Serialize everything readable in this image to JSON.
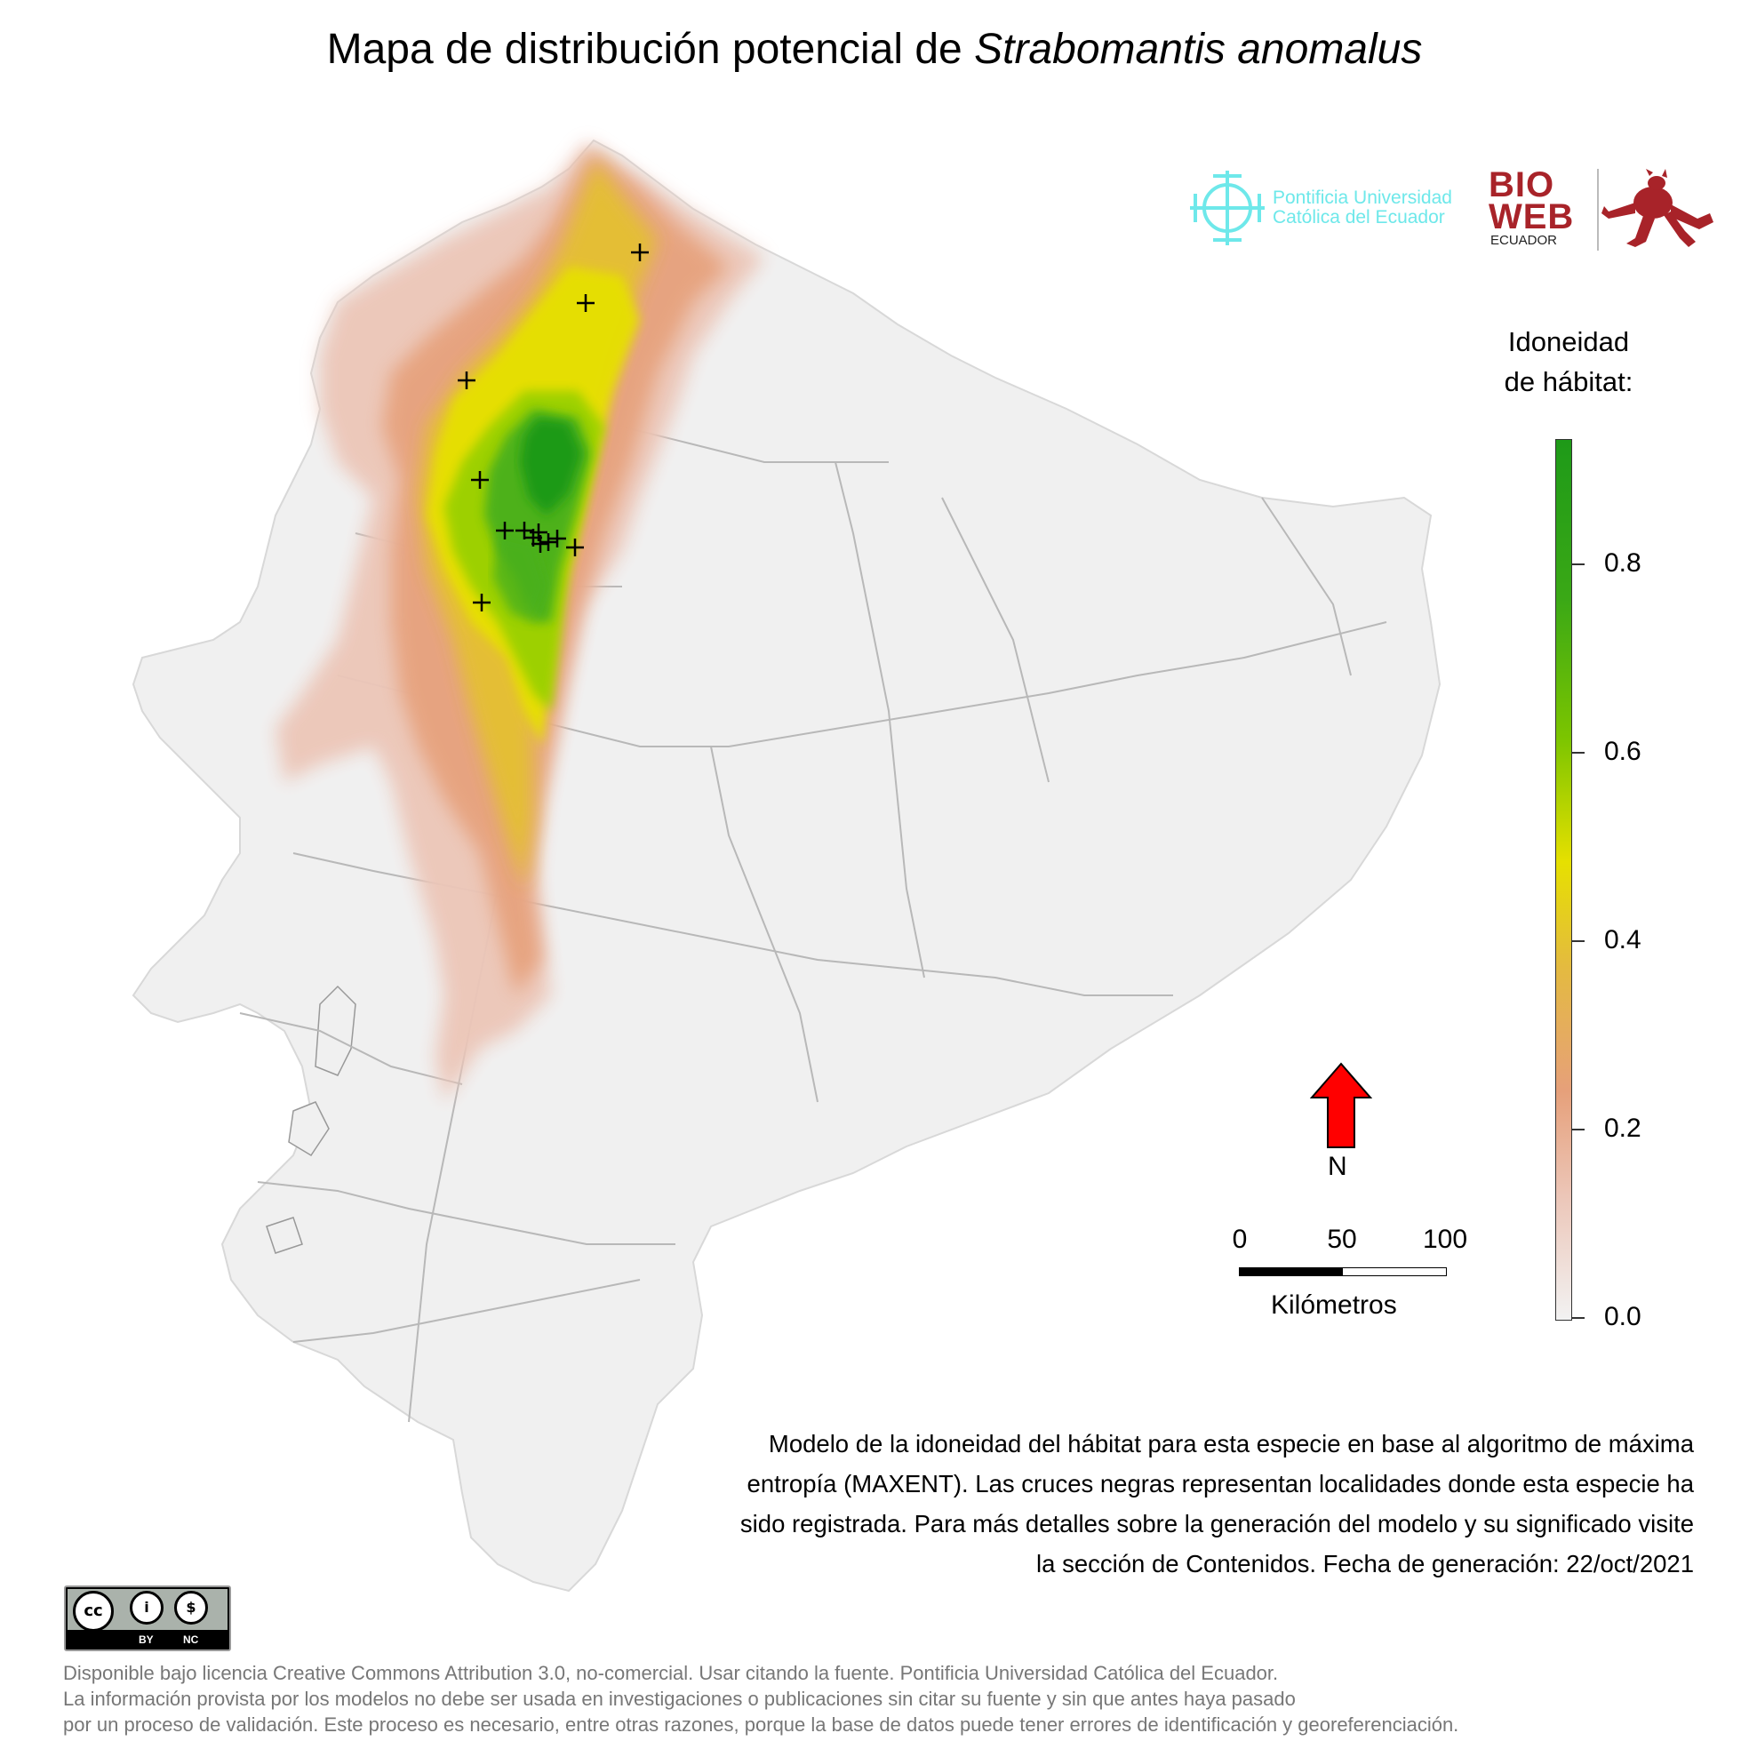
{
  "title": {
    "prefix": "Mapa de distribución potencial de ",
    "species": "Strabomantis anomalus"
  },
  "logos": {
    "puce_line1": "Pontificia Universidad",
    "puce_line2": "Católica del Ecuador",
    "bioweb_line1": "BIO",
    "bioweb_line2": "WEB",
    "bioweb_sub": "ECUADOR"
  },
  "legend": {
    "title_line1": "Idoneidad",
    "title_line2": "de hábitat:",
    "ticks": [
      "0.8",
      "0.6",
      "0.4",
      "0.2",
      "0.0"
    ],
    "color_low": "#f2f2f2",
    "color_mid_low": "#e6a07a",
    "color_mid": "#e6e000",
    "color_high": "#1e9a18"
  },
  "north_arrow": {
    "label": "N",
    "color": "#ff0000"
  },
  "scale": {
    "ticks": [
      "0",
      "50",
      "100"
    ],
    "unit_label": "Kilómetros"
  },
  "description": "Modelo de la idoneidad del hábitat para esta especie en base al algoritmo de máxima entropía (MAXENT). Las cruces negras representan localidades donde esta especie ha sido registrada. Para más detalles sobre la generación del modelo y su significado visite la sección de Contenidos. Fecha de generación: 22/oct/2021",
  "license": {
    "badge_by": "BY",
    "badge_nc": "NC",
    "line1": "Disponible bajo licencia Creative Commons Attribution 3.0, no-comercial. Usar citando la fuente. Pontificia Universidad Católica del Ecuador.",
    "line2": "La información provista por los modelos no debe ser usada en investigaciones o publicaciones sin citar su fuente y sin que antes haya pasado",
    "line3": "por un proceso de validación. Este proceso es necesario, entre otras razones, porque la base de datos puede tener errores de identificación y georeferenciación."
  },
  "map_colors": {
    "land": "#f0f0f0",
    "border": "#b8b8b8",
    "occurrence_marker": "#000000"
  },
  "occurrence_count": 14
}
